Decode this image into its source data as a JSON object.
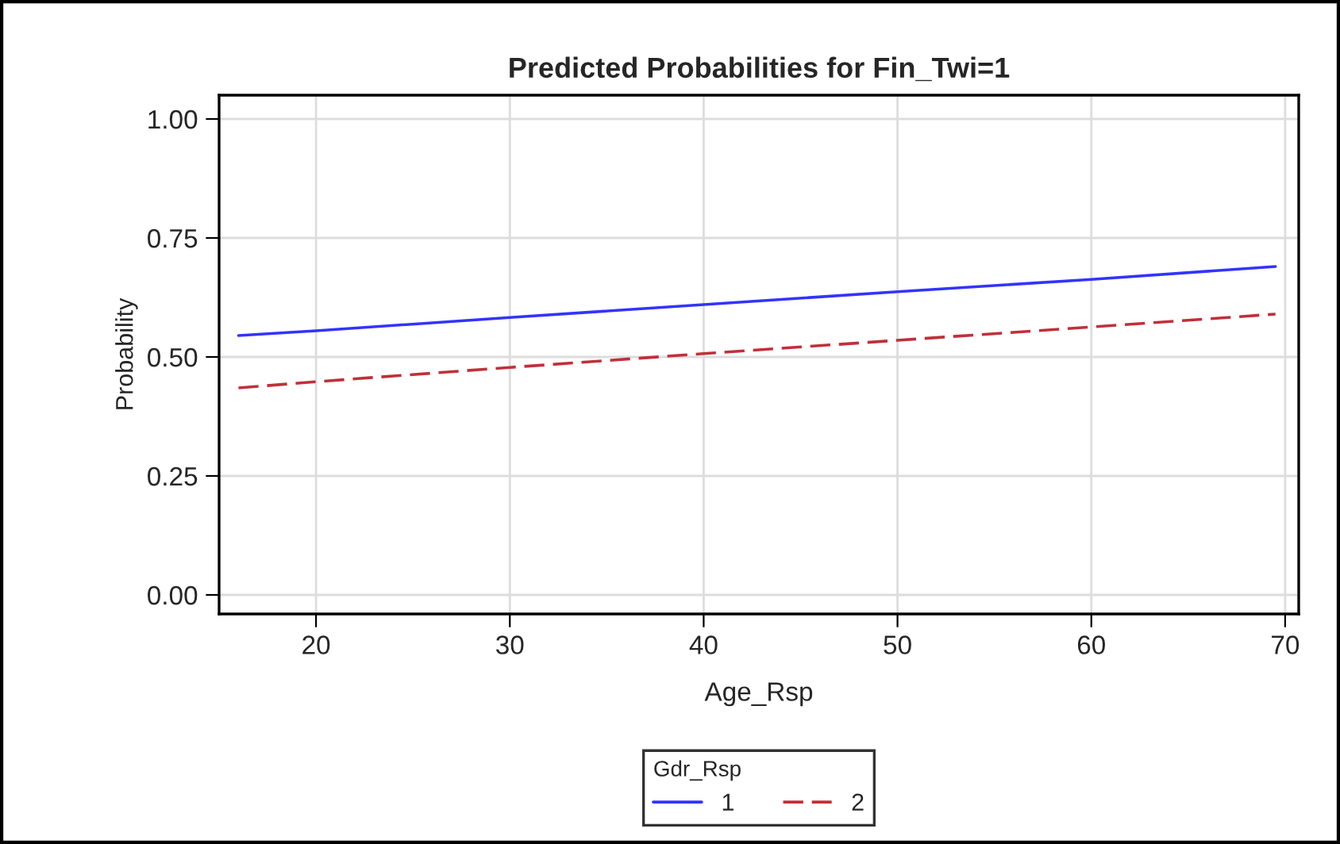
{
  "chart_data": {
    "type": "line",
    "title": "Predicted Probabilities for Fin_Twi=1",
    "xlabel": "Age_Rsp",
    "ylabel": "Probability",
    "legend_title": "Gdr_Rsp",
    "x": [
      16,
      20,
      30,
      40,
      50,
      60,
      69.5
    ],
    "series": [
      {
        "name": "1",
        "color": "#3333ff",
        "line_style": "solid",
        "values": [
          0.545,
          0.555,
          0.583,
          0.61,
          0.637,
          0.663,
          0.69
        ]
      },
      {
        "name": "2",
        "color": "#c0303a",
        "line_style": "dashed",
        "values": [
          0.435,
          0.448,
          0.478,
          0.507,
          0.535,
          0.563,
          0.59
        ]
      }
    ],
    "xlim": [
      15,
      70.7
    ],
    "ylim": [
      -0.04,
      1.05
    ],
    "xticks": [
      20,
      30,
      40,
      50,
      60,
      70
    ],
    "yticks": [
      {
        "value": 0,
        "label": "0.00"
      },
      {
        "value": 0.25,
        "label": "0.25"
      },
      {
        "value": 0.5,
        "label": "0.50"
      },
      {
        "value": 0.75,
        "label": "0.75"
      },
      {
        "value": 1,
        "label": "1.00"
      }
    ],
    "grid": true,
    "legend": "bottom",
    "marker": "none"
  }
}
